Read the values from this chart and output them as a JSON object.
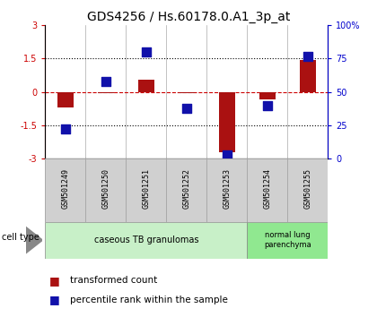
{
  "title": "GDS4256 / Hs.60178.0.A1_3p_at",
  "samples": [
    "GSM501249",
    "GSM501250",
    "GSM501251",
    "GSM501252",
    "GSM501253",
    "GSM501254",
    "GSM501255"
  ],
  "transformed_count": [
    -0.7,
    -0.05,
    0.55,
    -0.05,
    -2.7,
    -0.35,
    1.45
  ],
  "percentile_rank": [
    22,
    58,
    80,
    38,
    3,
    40,
    77
  ],
  "ylim_left": [
    -3,
    3
  ],
  "ylim_right": [
    0,
    100
  ],
  "yticks_left": [
    -3,
    -1.5,
    0,
    1.5,
    3
  ],
  "yticks_right": [
    0,
    25,
    50,
    75,
    100
  ],
  "dotted_lines": [
    -1.5,
    1.5
  ],
  "zero_line": 0,
  "bar_color": "#aa1111",
  "dot_color": "#1111aa",
  "bar_width": 0.4,
  "dot_size": 45,
  "n_group1": 5,
  "n_group2": 2,
  "group1_label": "caseous TB granulomas",
  "group2_label": "normal lung\nparenchyma",
  "group1_color": "#c8f0c8",
  "group2_color": "#90e890",
  "sample_box_color": "#d0d0d0",
  "sample_box_edge": "#aaaaaa",
  "cell_type_label": "cell type",
  "legend_bar_label": "transformed count",
  "legend_dot_label": "percentile rank within the sample",
  "background_color": "#ffffff",
  "tick_label_fontsize": 7,
  "title_fontsize": 10,
  "sample_fontsize": 6,
  "group_fontsize": 7,
  "legend_fontsize": 7.5
}
